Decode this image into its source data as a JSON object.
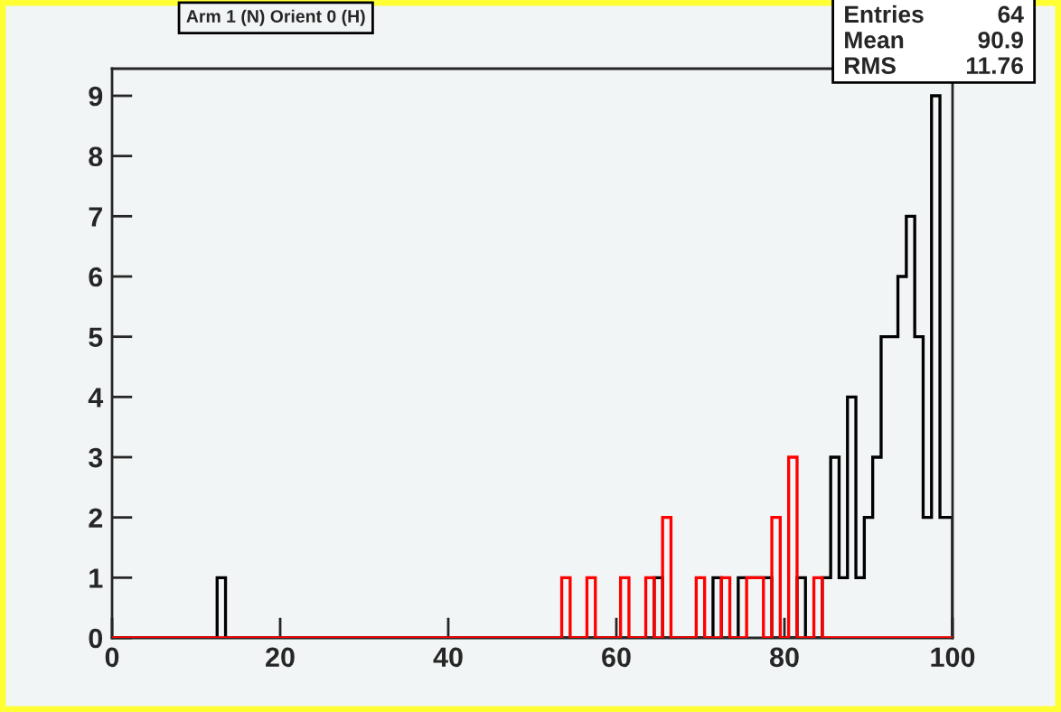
{
  "chart_data": {
    "type": "histogram",
    "title": "Arm 1 (N) Orient 0 (H)",
    "bins": [
      0,
      0.5,
      1.5,
      2.5,
      3.5,
      4.5,
      5.5,
      6.5,
      7.5,
      8.5,
      9.5,
      10.5,
      11.5,
      12.5,
      13.5,
      14.5,
      15.5,
      16.5,
      17.5,
      18.5,
      19.5,
      20.5,
      21.5,
      22.5,
      23.5,
      24.5,
      25.5,
      26.5,
      27.5,
      28.5,
      29.5,
      30.5,
      31.5,
      32.5,
      33.5,
      34.5,
      35.5,
      36.5,
      37.5,
      38.5,
      39.5,
      40.5,
      41.5,
      42.5,
      43.5,
      44.5,
      45.5,
      46.5,
      47.5,
      48.5,
      49.5,
      50.5,
      51.5,
      52.5,
      53.5,
      54.5,
      55.5,
      56.5,
      57.5,
      58.5,
      59.5,
      60.5,
      61.5,
      62.5,
      63.5,
      64.5,
      65.5,
      66.5,
      67.5,
      68.5,
      69.5,
      70.5,
      71.5,
      72.5,
      73.5,
      74.5,
      75.5,
      76.5,
      77.5,
      78.5,
      79.5,
      80.5,
      81.5,
      82.5,
      83.5,
      84.5,
      85.5,
      86.5,
      87.5,
      88.5,
      89.5,
      90.5,
      91.5,
      92.5,
      93.5,
      94.5,
      95.5,
      96.5,
      97.5,
      98.5,
      99.5,
      100
    ],
    "series": [
      {
        "color": "#000000",
        "values": [
          0,
          0,
          0,
          0,
          0,
          0,
          0,
          0,
          0,
          0,
          0,
          0,
          0,
          1,
          0,
          0,
          0,
          0,
          0,
          0,
          0,
          0,
          0,
          0,
          0,
          0,
          0,
          0,
          0,
          0,
          0,
          0,
          0,
          0,
          0,
          0,
          0,
          0,
          0,
          0,
          0,
          0,
          0,
          0,
          0,
          0,
          0,
          0,
          0,
          0,
          0,
          0,
          0,
          0,
          0,
          0,
          0,
          0,
          0,
          0,
          0,
          0,
          0,
          0,
          0,
          1,
          0,
          0,
          0,
          0,
          0,
          0,
          1,
          0,
          0,
          1,
          1,
          1,
          1,
          0,
          0,
          0,
          1,
          0,
          0,
          1,
          3,
          1,
          4,
          1,
          2,
          3,
          5,
          5,
          6,
          7,
          5,
          2,
          9,
          2,
          2
        ]
      },
      {
        "color": "#ff0000",
        "values": [
          0,
          0,
          0,
          0,
          0,
          0,
          0,
          0,
          0,
          0,
          0,
          0,
          0,
          0,
          0,
          0,
          0,
          0,
          0,
          0,
          0,
          0,
          0,
          0,
          0,
          0,
          0,
          0,
          0,
          0,
          0,
          0,
          0,
          0,
          0,
          0,
          0,
          0,
          0,
          0,
          0,
          0,
          0,
          0,
          0,
          0,
          0,
          0,
          0,
          0,
          0,
          0,
          0,
          0,
          1,
          0,
          0,
          1,
          0,
          0,
          0,
          1,
          0,
          0,
          1,
          0,
          2,
          0,
          0,
          0,
          1,
          0,
          0,
          1,
          0,
          0,
          1,
          1,
          0,
          2,
          0,
          3,
          0,
          0,
          1,
          0,
          0,
          0,
          0,
          0,
          0,
          0,
          0,
          0,
          0,
          0,
          0,
          0,
          0,
          0,
          0
        ]
      }
    ],
    "xlim": [
      0,
      100
    ],
    "xticks": [
      0,
      20,
      40,
      60,
      80,
      100
    ],
    "ylim": [
      0,
      9.45
    ],
    "yticks": [
      0,
      1,
      2,
      3,
      4,
      5,
      6,
      7,
      8,
      9
    ],
    "grid": false,
    "legend": false,
    "annotations": [
      "Entries 64",
      "Mean 90.9",
      "RMS 11.76"
    ]
  }
}
